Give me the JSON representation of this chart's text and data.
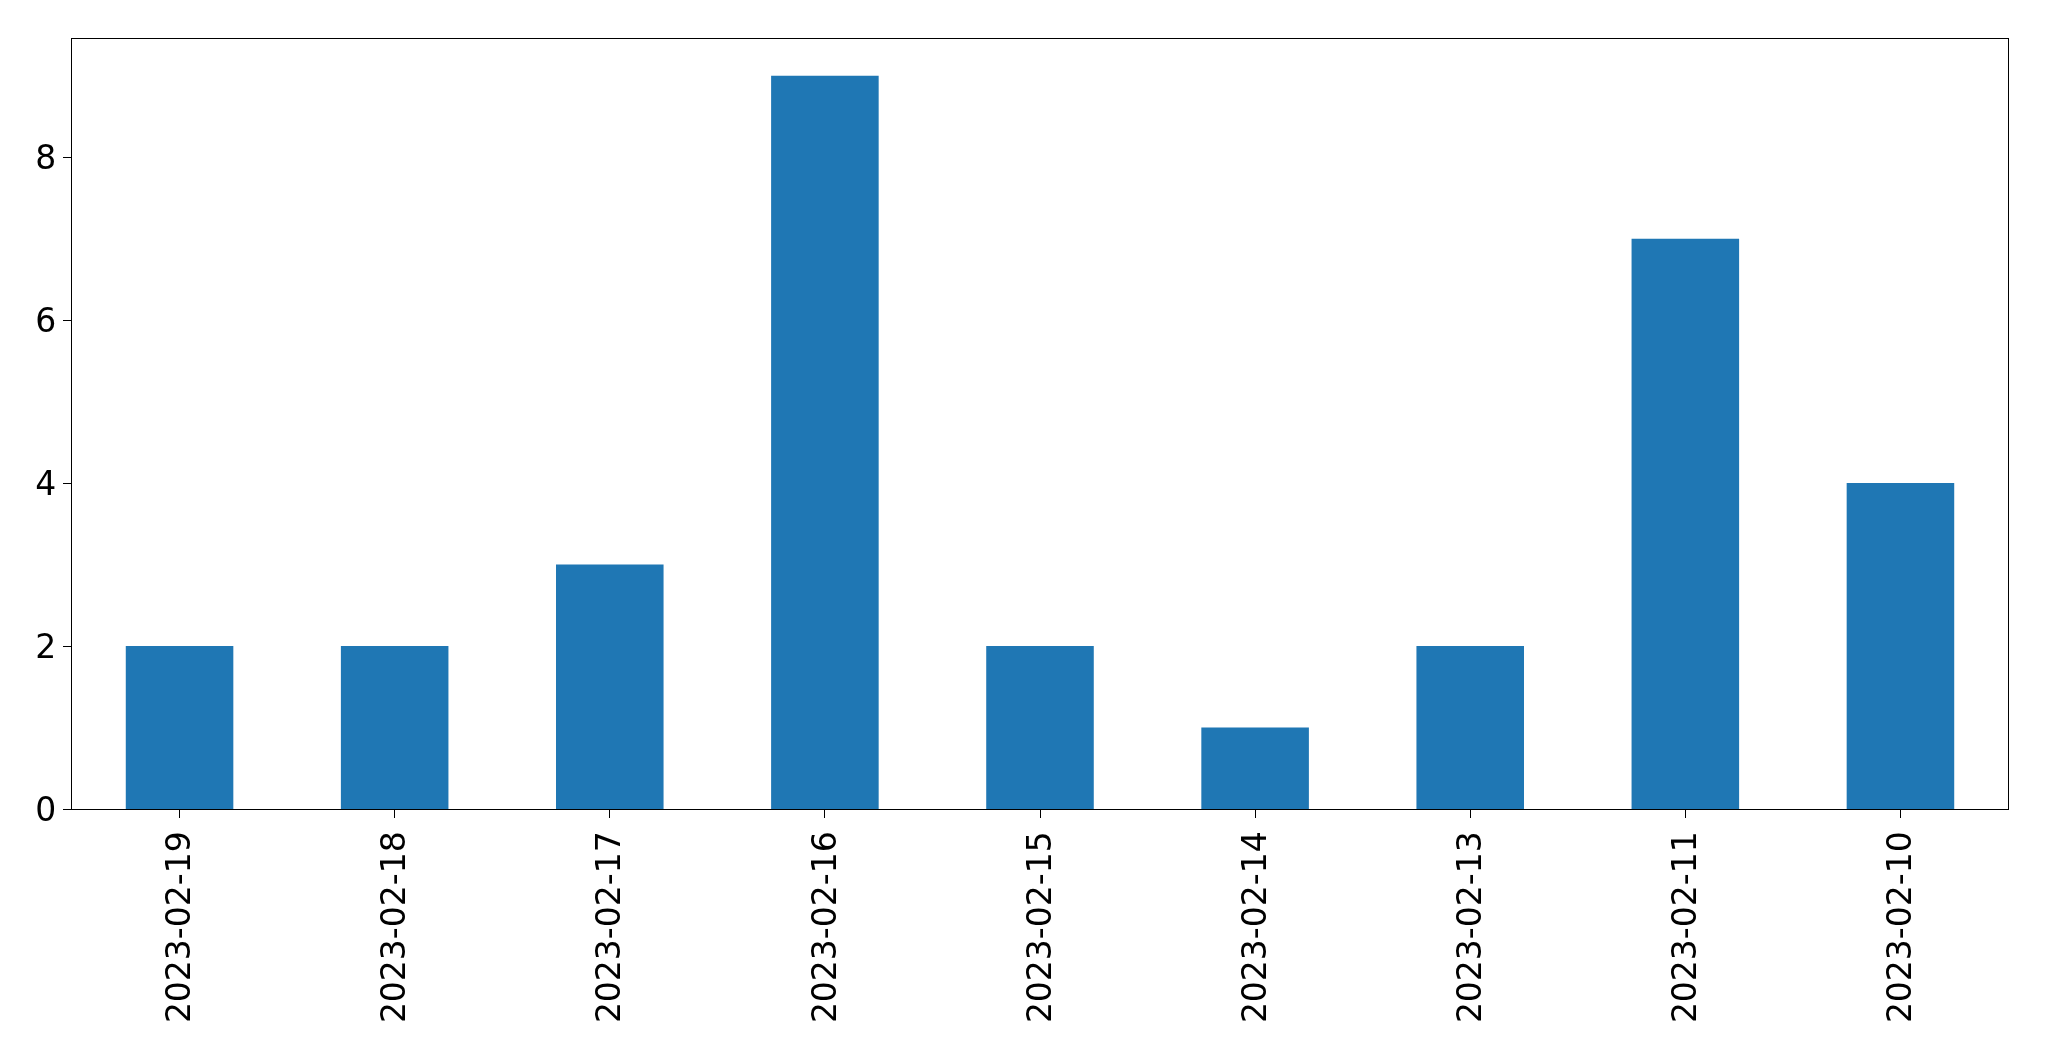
{
  "chart_data": {
    "type": "bar",
    "categories": [
      "2023-02-19",
      "2023-02-18",
      "2023-02-17",
      "2023-02-16",
      "2023-02-15",
      "2023-02-14",
      "2023-02-13",
      "2023-02-11",
      "2023-02-10"
    ],
    "values": [
      2,
      2,
      3,
      9,
      2,
      1,
      2,
      7,
      4
    ],
    "color": "#1f77b4",
    "ylim": [
      0,
      9.45
    ],
    "yticks": [
      0,
      2,
      4,
      6,
      8
    ]
  }
}
